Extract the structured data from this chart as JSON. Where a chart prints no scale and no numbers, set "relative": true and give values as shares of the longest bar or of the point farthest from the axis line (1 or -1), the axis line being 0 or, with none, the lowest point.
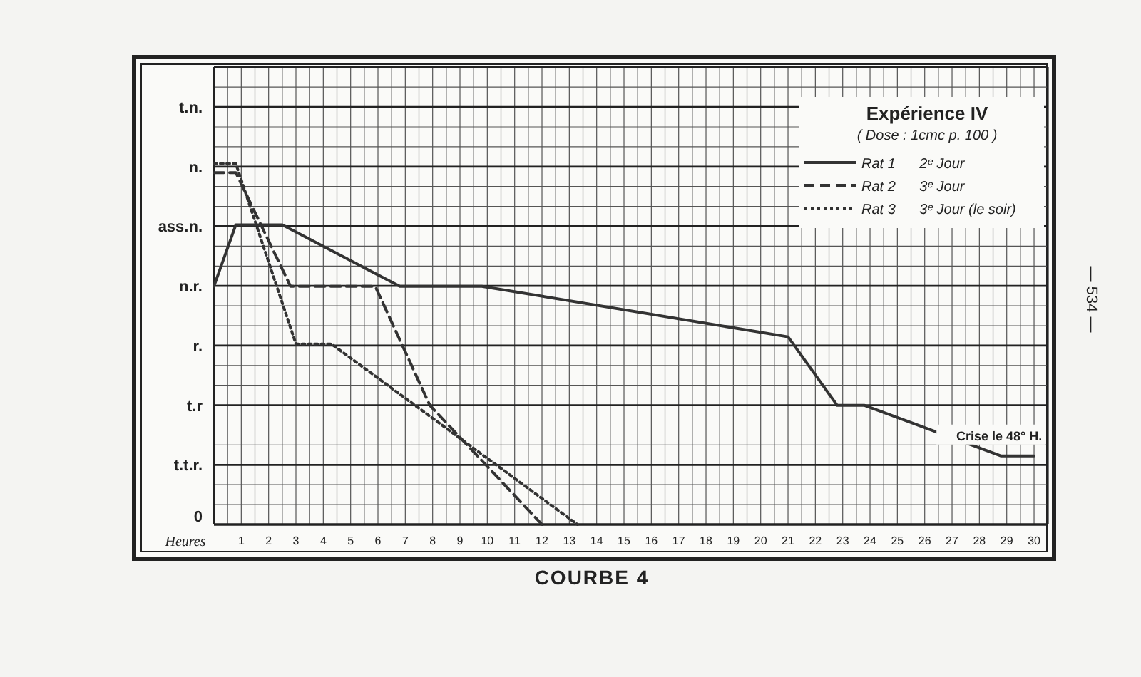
{
  "chart_data": {
    "type": "line",
    "title": "COURBE 4",
    "xlabel": "Heures",
    "legend_title": "Expérience IV",
    "subtitle": "( Dose : 1cmc  p. 100 )",
    "annotations": [
      {
        "text": "Crise le 48° H.",
        "x": 29,
        "y": 0.19
      },
      "— 534 —"
    ],
    "xlim": [
      0,
      30.5
    ],
    "xticks": [
      1,
      2,
      3,
      4,
      5,
      6,
      7,
      8,
      9,
      10,
      11,
      12,
      13,
      14,
      15,
      16,
      17,
      18,
      19,
      20,
      21,
      22,
      23,
      24,
      25,
      26,
      27,
      28,
      29,
      30
    ],
    "relative": true,
    "y_categories": [
      "t.n.",
      "n.",
      "ass.n.",
      "n.r.",
      "r.",
      "t.r",
      "t.t.r.",
      "0"
    ],
    "grid": true,
    "legend": "top right",
    "marker": "none",
    "series": [
      {
        "name": "Rat 1      2ᵉ Jour",
        "color": "#333333",
        "line_style": "solid",
        "x": [
          0,
          0.8,
          2.5,
          6.8,
          9.8,
          21,
          22.8,
          23.8,
          28.8,
          30
        ],
        "values": [
          0.66,
          0.83,
          0.83,
          0.66,
          0.66,
          0.52,
          0.33,
          0.33,
          0.19,
          0.19
        ]
      },
      {
        "name": "Rat 2      3ᵉ Jour",
        "color": "#333333",
        "line_style": "dashed",
        "x": [
          0,
          0.8,
          2.8,
          5.9,
          7.9,
          12
        ],
        "values": [
          0.975,
          0.975,
          0.66,
          0.66,
          0.33,
          0
        ]
      },
      {
        "name": "Rat 3      3ᵉ Jour (le soir)",
        "color": "#333333",
        "line_style": "dotted",
        "x": [
          0,
          0.8,
          3,
          4.3,
          13.3
        ],
        "values": [
          1,
          1,
          0.5,
          0.5,
          0
        ]
      }
    ]
  }
}
